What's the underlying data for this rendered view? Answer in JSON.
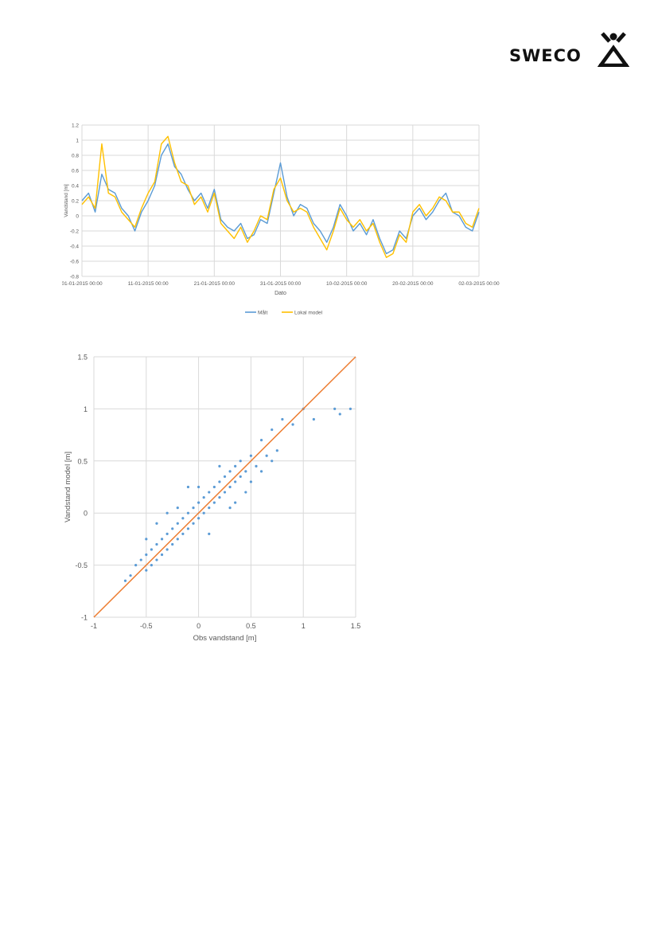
{
  "logo": {
    "text": "SWECO",
    "mark": "sweco-house-figure-logo"
  },
  "chart_data": [
    {
      "type": "line",
      "title": "",
      "xlabel": "Dato",
      "ylabel": "Vandstand [m]",
      "ylim": [
        -0.8,
        1.2
      ],
      "yticks": [
        -0.8,
        -0.6,
        -0.4,
        -0.2,
        0,
        0.2,
        0.4,
        0.6,
        0.8,
        1,
        1.2
      ],
      "ytick_labels": [
        "-0.8",
        "-0.6",
        "-0.4",
        "-0.2",
        "0",
        "0.2",
        "0.4",
        "0.6",
        "0.8",
        "1",
        "1.2"
      ],
      "xtick_labels": [
        "01-01-2015 00:00",
        "11-01-2015 00:00",
        "21-01-2015 00:00",
        "31-01-2015 00:00",
        "10-02-2015 00:00",
        "20-02-2015 00:00",
        "02-03-2015 00:00"
      ],
      "xlim": [
        "2015-01-01",
        "2015-03-02"
      ],
      "grid": true,
      "legend_position": "bottom",
      "x": [
        "2015-01-01",
        "2015-01-02",
        "2015-01-03",
        "2015-01-04",
        "2015-01-05",
        "2015-01-06",
        "2015-01-07",
        "2015-01-08",
        "2015-01-09",
        "2015-01-10",
        "2015-01-11",
        "2015-01-12",
        "2015-01-13",
        "2015-01-14",
        "2015-01-15",
        "2015-01-16",
        "2015-01-17",
        "2015-01-18",
        "2015-01-19",
        "2015-01-20",
        "2015-01-21",
        "2015-01-22",
        "2015-01-23",
        "2015-01-24",
        "2015-01-25",
        "2015-01-26",
        "2015-01-27",
        "2015-01-28",
        "2015-01-29",
        "2015-01-30",
        "2015-01-31",
        "2015-02-01",
        "2015-02-02",
        "2015-02-03",
        "2015-02-04",
        "2015-02-05",
        "2015-02-06",
        "2015-02-07",
        "2015-02-08",
        "2015-02-09",
        "2015-02-10",
        "2015-02-11",
        "2015-02-12",
        "2015-02-13",
        "2015-02-14",
        "2015-02-15",
        "2015-02-16",
        "2015-02-17",
        "2015-02-18",
        "2015-02-19",
        "2015-02-20",
        "2015-02-21",
        "2015-02-22",
        "2015-02-23",
        "2015-02-24",
        "2015-02-25",
        "2015-02-26",
        "2015-02-27",
        "2015-02-28",
        "2015-03-01",
        "2015-03-02"
      ],
      "series": [
        {
          "name": "Målt",
          "color": "#5B9BD5",
          "values": [
            0.2,
            0.3,
            0.05,
            0.55,
            0.35,
            0.3,
            0.1,
            0.0,
            -0.2,
            0.05,
            0.2,
            0.4,
            0.8,
            0.95,
            0.65,
            0.55,
            0.35,
            0.2,
            0.3,
            0.1,
            0.35,
            -0.05,
            -0.15,
            -0.2,
            -0.1,
            -0.3,
            -0.25,
            -0.05,
            -0.1,
            0.3,
            0.7,
            0.25,
            0.0,
            0.15,
            0.1,
            -0.1,
            -0.2,
            -0.35,
            -0.15,
            0.15,
            0.0,
            -0.2,
            -0.1,
            -0.25,
            -0.05,
            -0.3,
            -0.5,
            -0.45,
            -0.2,
            -0.3,
            0.0,
            0.1,
            -0.05,
            0.05,
            0.2,
            0.3,
            0.05,
            0.0,
            -0.15,
            -0.2,
            0.05
          ]
        },
        {
          "name": "Lokal model",
          "color": "#FFC000",
          "values": [
            0.15,
            0.25,
            0.1,
            0.95,
            0.3,
            0.25,
            0.05,
            -0.05,
            -0.15,
            0.1,
            0.3,
            0.45,
            0.95,
            1.05,
            0.7,
            0.45,
            0.4,
            0.15,
            0.25,
            0.05,
            0.3,
            -0.1,
            -0.2,
            -0.3,
            -0.15,
            -0.35,
            -0.2,
            0.0,
            -0.05,
            0.35,
            0.5,
            0.2,
            0.05,
            0.1,
            0.05,
            -0.15,
            -0.3,
            -0.45,
            -0.2,
            0.1,
            -0.05,
            -0.15,
            -0.05,
            -0.2,
            -0.1,
            -0.35,
            -0.55,
            -0.5,
            -0.25,
            -0.35,
            0.05,
            0.15,
            0.0,
            0.1,
            0.25,
            0.2,
            0.05,
            0.05,
            -0.1,
            -0.15,
            0.1
          ]
        }
      ]
    },
    {
      "type": "scatter",
      "title": "",
      "xlabel": "Obs vandstand [m]",
      "ylabel": "Vandstand model [m]",
      "xlim": [
        -1,
        1.5
      ],
      "ylim": [
        -1,
        1.5
      ],
      "xticks": [
        -1,
        -0.5,
        0,
        0.5,
        1,
        1.5
      ],
      "yticks": [
        -1,
        -0.5,
        0,
        0.5,
        1,
        1.5
      ],
      "xtick_labels": [
        "-1",
        "-0.5",
        "0",
        "0.5",
        "1",
        "1.5"
      ],
      "ytick_labels": [
        "-1",
        "-0.5",
        "0",
        "0.5",
        "1",
        "1.5"
      ],
      "grid": true,
      "points_color": "#5B9BD5",
      "reference_line": {
        "color": "#ED7D31",
        "x": [
          -1,
          1.5
        ],
        "y": [
          -1,
          1.5
        ]
      },
      "points": [
        [
          -0.7,
          -0.65
        ],
        [
          -0.65,
          -0.6
        ],
        [
          -0.6,
          -0.5
        ],
        [
          -0.55,
          -0.45
        ],
        [
          -0.5,
          -0.55
        ],
        [
          -0.5,
          -0.4
        ],
        [
          -0.45,
          -0.35
        ],
        [
          -0.45,
          -0.5
        ],
        [
          -0.4,
          -0.45
        ],
        [
          -0.4,
          -0.3
        ],
        [
          -0.35,
          -0.25
        ],
        [
          -0.35,
          -0.4
        ],
        [
          -0.3,
          -0.35
        ],
        [
          -0.3,
          -0.2
        ],
        [
          -0.25,
          -0.3
        ],
        [
          -0.25,
          -0.15
        ],
        [
          -0.2,
          -0.1
        ],
        [
          -0.2,
          -0.25
        ],
        [
          -0.15,
          -0.2
        ],
        [
          -0.15,
          -0.05
        ],
        [
          -0.1,
          -0.15
        ],
        [
          -0.1,
          0.0
        ],
        [
          -0.05,
          -0.1
        ],
        [
          -0.05,
          0.05
        ],
        [
          0.0,
          -0.05
        ],
        [
          0.0,
          0.1
        ],
        [
          0.05,
          0.0
        ],
        [
          0.05,
          0.15
        ],
        [
          0.1,
          0.05
        ],
        [
          0.1,
          0.2
        ],
        [
          0.15,
          0.1
        ],
        [
          0.15,
          0.25
        ],
        [
          0.2,
          0.15
        ],
        [
          0.2,
          0.3
        ],
        [
          0.25,
          0.2
        ],
        [
          0.25,
          0.35
        ],
        [
          0.3,
          0.25
        ],
        [
          0.3,
          0.4
        ],
        [
          0.35,
          0.3
        ],
        [
          0.35,
          0.45
        ],
        [
          0.4,
          0.35
        ],
        [
          0.4,
          0.5
        ],
        [
          0.45,
          0.4
        ],
        [
          0.5,
          0.55
        ],
        [
          0.55,
          0.45
        ],
        [
          0.6,
          0.7
        ],
        [
          0.65,
          0.55
        ],
        [
          0.7,
          0.8
        ],
        [
          0.75,
          0.6
        ],
        [
          0.8,
          0.9
        ],
        [
          0.9,
          0.85
        ],
        [
          1.0,
          1.0
        ],
        [
          1.1,
          0.9
        ],
        [
          1.3,
          1.0
        ],
        [
          1.35,
          0.95
        ],
        [
          1.45,
          1.0
        ],
        [
          -0.3,
          0.0
        ],
        [
          0.1,
          -0.2
        ],
        [
          0.35,
          0.1
        ],
        [
          -0.1,
          0.25
        ],
        [
          0.5,
          0.3
        ],
        [
          0.6,
          0.4
        ],
        [
          0.2,
          0.45
        ],
        [
          -0.4,
          -0.1
        ],
        [
          -0.2,
          0.05
        ],
        [
          0.45,
          0.2
        ],
        [
          0.0,
          0.25
        ],
        [
          0.3,
          0.05
        ],
        [
          -0.5,
          -0.25
        ],
        [
          0.7,
          0.5
        ]
      ]
    }
  ]
}
